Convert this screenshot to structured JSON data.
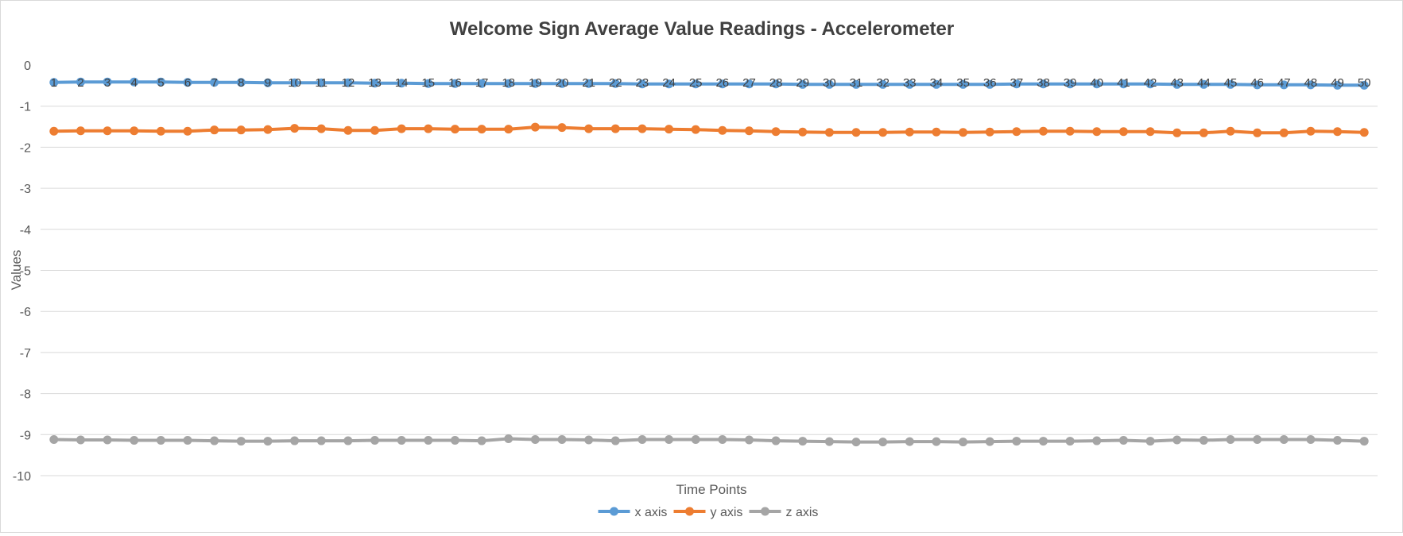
{
  "chart_data": {
    "type": "line",
    "title": "Welcome Sign Average Value Readings - Accelerometer",
    "xlabel": "Time Points",
    "ylabel": "Values",
    "ylim": [
      -10,
      0
    ],
    "yticks": [
      0,
      -1,
      -2,
      -3,
      -4,
      -5,
      -6,
      -7,
      -8,
      -9,
      -10
    ],
    "grid": true,
    "legend_position": "bottom",
    "categories": [
      1,
      2,
      3,
      4,
      5,
      6,
      7,
      8,
      9,
      10,
      11,
      12,
      13,
      14,
      15,
      16,
      17,
      18,
      19,
      20,
      21,
      22,
      23,
      24,
      25,
      26,
      27,
      28,
      29,
      30,
      31,
      32,
      33,
      34,
      35,
      36,
      37,
      38,
      39,
      40,
      41,
      42,
      43,
      44,
      45,
      46,
      47,
      48,
      49,
      50
    ],
    "series": [
      {
        "name": "x axis",
        "color": "#5b9bd5",
        "values": [
          -0.42,
          -0.41,
          -0.41,
          -0.41,
          -0.41,
          -0.42,
          -0.42,
          -0.42,
          -0.43,
          -0.43,
          -0.43,
          -0.43,
          -0.44,
          -0.44,
          -0.45,
          -0.45,
          -0.45,
          -0.45,
          -0.45,
          -0.45,
          -0.45,
          -0.45,
          -0.46,
          -0.46,
          -0.46,
          -0.46,
          -0.46,
          -0.46,
          -0.47,
          -0.47,
          -0.47,
          -0.47,
          -0.47,
          -0.47,
          -0.47,
          -0.47,
          -0.46,
          -0.46,
          -0.46,
          -0.46,
          -0.46,
          -0.46,
          -0.47,
          -0.47,
          -0.47,
          -0.48,
          -0.48,
          -0.48,
          -0.49,
          -0.49
        ]
      },
      {
        "name": "y axis",
        "color": "#ed7d31",
        "values": [
          -1.61,
          -1.6,
          -1.6,
          -1.6,
          -1.61,
          -1.61,
          -1.58,
          -1.58,
          -1.57,
          -1.54,
          -1.55,
          -1.59,
          -1.59,
          -1.55,
          -1.55,
          -1.56,
          -1.56,
          -1.56,
          -1.51,
          -1.52,
          -1.55,
          -1.55,
          -1.55,
          -1.56,
          -1.57,
          -1.59,
          -1.6,
          -1.62,
          -1.63,
          -1.64,
          -1.64,
          -1.64,
          -1.63,
          -1.63,
          -1.64,
          -1.63,
          -1.62,
          -1.61,
          -1.61,
          -1.62,
          -1.62,
          -1.62,
          -1.65,
          -1.65,
          -1.61,
          -1.65,
          -1.65,
          -1.61,
          -1.62,
          -1.64
        ]
      },
      {
        "name": "z axis",
        "color": "#a5a5a5",
        "values": [
          -9.12,
          -9.13,
          -9.13,
          -9.14,
          -9.14,
          -9.14,
          -9.15,
          -9.16,
          -9.16,
          -9.15,
          -9.15,
          -9.15,
          -9.14,
          -9.14,
          -9.14,
          -9.14,
          -9.15,
          -9.1,
          -9.12,
          -9.12,
          -9.13,
          -9.15,
          -9.12,
          -9.12,
          -9.12,
          -9.12,
          -9.13,
          -9.15,
          -9.16,
          -9.17,
          -9.18,
          -9.18,
          -9.17,
          -9.17,
          -9.18,
          -9.17,
          -9.16,
          -9.16,
          -9.16,
          -9.15,
          -9.14,
          -9.16,
          -9.13,
          -9.14,
          -9.12,
          -9.12,
          -9.12,
          -9.12,
          -9.14,
          -9.16
        ]
      }
    ]
  }
}
